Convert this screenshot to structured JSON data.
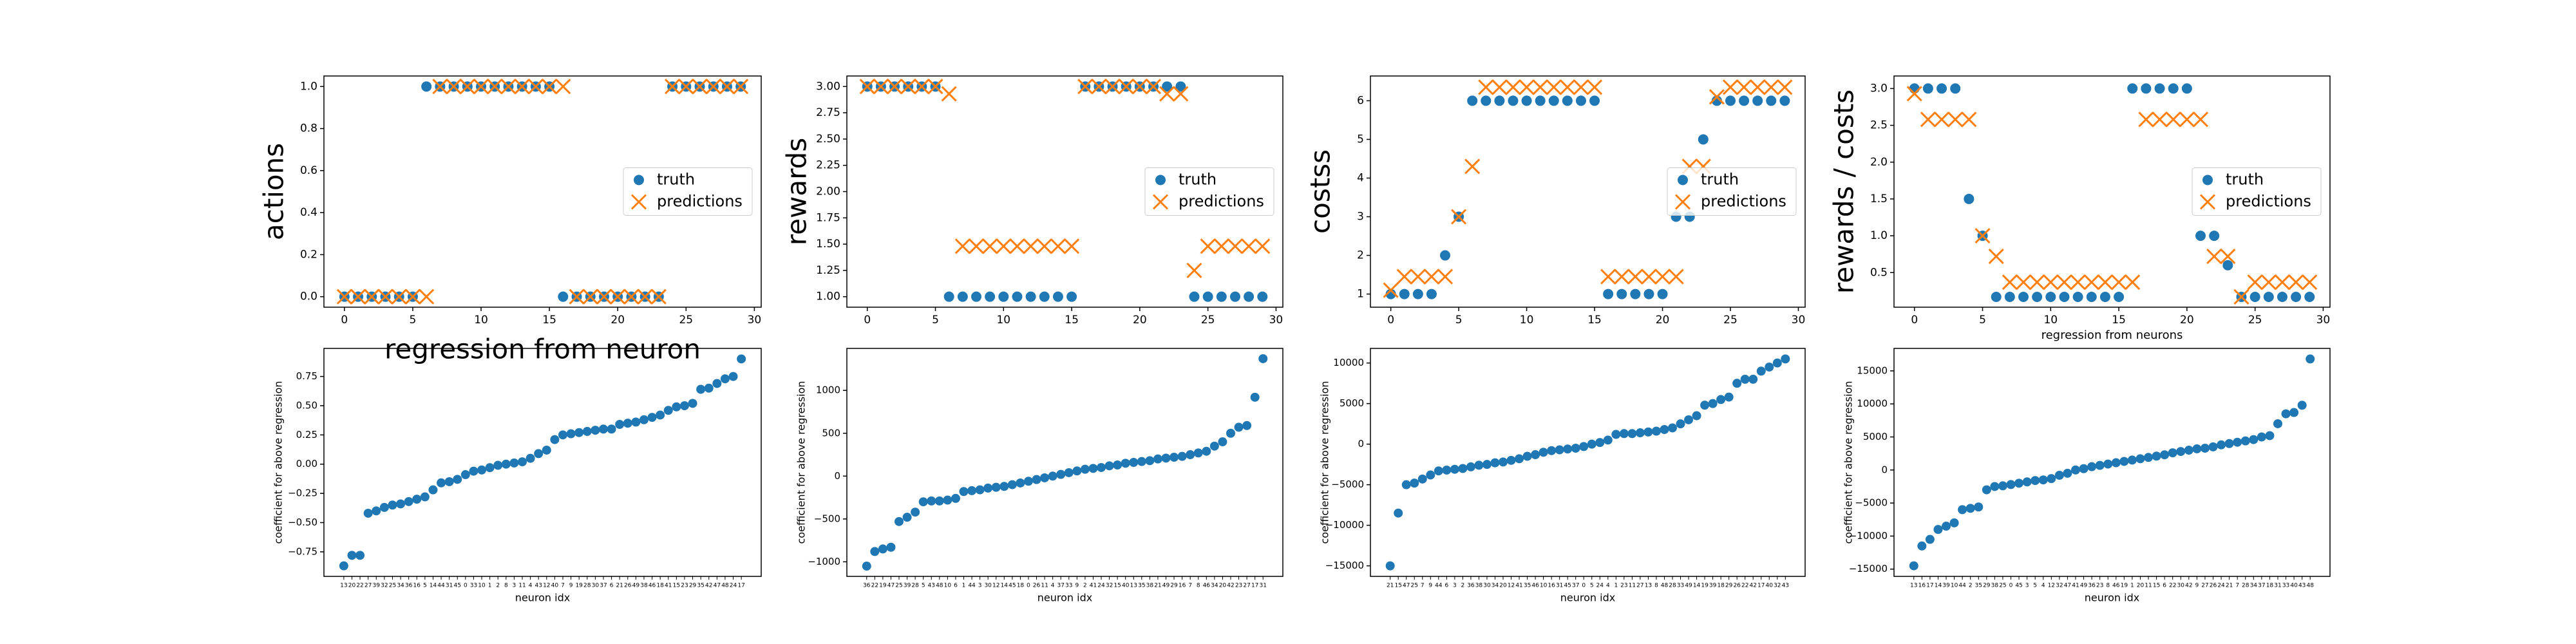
{
  "chart_data": [
    {
      "type": "scatter",
      "xlabel": "regression from neuron",
      "ylabel": "actions",
      "legend": "center right",
      "x": [
        0,
        1,
        2,
        3,
        4,
        5,
        6,
        7,
        8,
        9,
        10,
        11,
        12,
        13,
        14,
        15,
        16,
        17,
        18,
        19,
        20,
        21,
        22,
        23,
        24,
        25,
        26,
        27,
        28,
        29
      ],
      "series": [
        {
          "name": "truth",
          "color": "#1f77b4",
          "marker": "o",
          "values": [
            0,
            0,
            0,
            0,
            0,
            0,
            1,
            1,
            1,
            1,
            1,
            1,
            1,
            1,
            1,
            1,
            0,
            0,
            0,
            0,
            0,
            0,
            0,
            0,
            1,
            1,
            1,
            1,
            1,
            1
          ]
        },
        {
          "name": "predictions",
          "color": "#ff7f0e",
          "marker": "x",
          "values": [
            0,
            0,
            0,
            0,
            0,
            0,
            0,
            1,
            1,
            1,
            1,
            1,
            1,
            1,
            1,
            1,
            1,
            0,
            0,
            0,
            0,
            0,
            0,
            0,
            1,
            1,
            1,
            1,
            1,
            1
          ]
        }
      ],
      "xlim": [
        -1.5,
        30.5
      ],
      "xticks": [
        0,
        5,
        10,
        15,
        20,
        25,
        30
      ],
      "ylim": [
        -0.05,
        1.05
      ],
      "yticks": [
        {
          "value": 0,
          "label": "0.0"
        },
        0.2,
        0.4,
        0.6,
        0.8,
        {
          "value": 1,
          "label": "1.0"
        }
      ]
    },
    {
      "type": "scatter",
      "ylabel": "rewards",
      "legend": "center right",
      "x": [
        0,
        1,
        2,
        3,
        4,
        5,
        6,
        7,
        8,
        9,
        10,
        11,
        12,
        13,
        14,
        15,
        16,
        17,
        18,
        19,
        20,
        21,
        22,
        23,
        24,
        25,
        26,
        27,
        28,
        29
      ],
      "series": [
        {
          "name": "truth",
          "color": "#1f77b4",
          "marker": "o",
          "values": [
            3,
            3,
            3,
            3,
            3,
            3,
            1,
            1,
            1,
            1,
            1,
            1,
            1,
            1,
            1,
            1,
            3,
            3,
            3,
            3,
            3,
            3,
            3,
            3,
            1,
            1,
            1,
            1,
            1,
            1
          ]
        },
        {
          "name": "predictions",
          "color": "#ff7f0e",
          "marker": "x",
          "values": [
            3,
            3,
            3,
            3,
            3,
            3,
            2.93,
            1.48,
            1.48,
            1.48,
            1.48,
            1.48,
            1.48,
            1.48,
            1.48,
            1.48,
            3,
            3,
            3,
            3,
            3,
            3,
            2.93,
            2.93,
            1.25,
            1.48,
            1.48,
            1.48,
            1.48,
            1.48
          ]
        }
      ],
      "xlim": [
        -1.5,
        30.5
      ],
      "xticks": [
        0,
        5,
        10,
        15,
        20,
        25,
        30
      ],
      "ylim": [
        0.9,
        3.1
      ],
      "yticks": [
        {
          "value": 1,
          "label": "1.00"
        },
        1.25,
        {
          "value": 1.5,
          "label": "1.50"
        },
        1.75,
        {
          "value": 2,
          "label": "2.00"
        },
        2.25,
        {
          "value": 2.5,
          "label": "2.50"
        },
        2.75,
        {
          "value": 3,
          "label": "3.00"
        }
      ]
    },
    {
      "type": "scatter",
      "ylabel": "costss",
      "legend": "center right",
      "x": [
        0,
        1,
        2,
        3,
        4,
        5,
        6,
        7,
        8,
        9,
        10,
        11,
        12,
        13,
        14,
        15,
        16,
        17,
        18,
        19,
        20,
        21,
        22,
        23,
        24,
        25,
        26,
        27,
        28,
        29
      ],
      "series": [
        {
          "name": "truth",
          "color": "#1f77b4",
          "marker": "o",
          "values": [
            1,
            1,
            1,
            1,
            2,
            3,
            6,
            6,
            6,
            6,
            6,
            6,
            6,
            6,
            6,
            6,
            1,
            1,
            1,
            1,
            1,
            3,
            3,
            5,
            6,
            6,
            6,
            6,
            6,
            6
          ]
        },
        {
          "name": "predictions",
          "color": "#ff7f0e",
          "marker": "x",
          "values": [
            1.1,
            1.45,
            1.45,
            1.45,
            1.45,
            3,
            4.3,
            6.35,
            6.35,
            6.35,
            6.35,
            6.35,
            6.35,
            6.35,
            6.35,
            6.35,
            1.45,
            1.45,
            1.45,
            1.45,
            1.45,
            1.45,
            4.3,
            4.3,
            6.1,
            6.35,
            6.35,
            6.35,
            6.35,
            6.35
          ]
        }
      ],
      "xlim": [
        -1.5,
        30.5
      ],
      "xticks": [
        0,
        5,
        10,
        15,
        20,
        25,
        30
      ],
      "ylim": [
        0.66,
        6.64
      ],
      "yticks": [
        1,
        2,
        3,
        4,
        5,
        6
      ]
    },
    {
      "type": "scatter",
      "xlabel": "regression from neurons",
      "ylabel": "rewards / costs",
      "legend": "center right",
      "x": [
        0,
        1,
        2,
        3,
        4,
        5,
        6,
        7,
        8,
        9,
        10,
        11,
        12,
        13,
        14,
        15,
        16,
        17,
        18,
        19,
        20,
        21,
        22,
        23,
        24,
        25,
        26,
        27,
        28,
        29
      ],
      "series": [
        {
          "name": "truth",
          "color": "#1f77b4",
          "marker": "o",
          "values": [
            3,
            3,
            3,
            3,
            1.5,
            1,
            0.17,
            0.17,
            0.17,
            0.17,
            0.17,
            0.17,
            0.17,
            0.17,
            0.17,
            0.17,
            3,
            3,
            3,
            3,
            3,
            1,
            1,
            0.6,
            0.17,
            0.17,
            0.17,
            0.17,
            0.17,
            0.17
          ]
        },
        {
          "name": "predictions",
          "color": "#ff7f0e",
          "marker": "x",
          "values": [
            2.93,
            2.58,
            2.58,
            2.58,
            2.58,
            1,
            0.72,
            0.37,
            0.37,
            0.37,
            0.37,
            0.37,
            0.37,
            0.37,
            0.37,
            0.37,
            0.37,
            2.58,
            2.58,
            2.58,
            2.58,
            2.58,
            0.72,
            0.72,
            0.17,
            0.37,
            0.37,
            0.37,
            0.37,
            0.37
          ]
        }
      ],
      "xlim": [
        -1.5,
        30.5
      ],
      "xticks": [
        0,
        5,
        10,
        15,
        20,
        25,
        30
      ],
      "ylim": [
        0.03,
        3.17
      ],
      "yticks": [
        0.5,
        {
          "value": 1,
          "label": "1.0"
        },
        1.5,
        {
          "value": 2,
          "label": "2.0"
        },
        2.5,
        {
          "value": 3,
          "label": "3.0"
        }
      ]
    },
    {
      "type": "scatter",
      "xlabel": "neuron idx",
      "ylabel": "coefficient for above regression",
      "color": "#1f77b4",
      "categories": [
        13,
        20,
        22,
        27,
        39,
        32,
        25,
        34,
        36,
        16,
        5,
        14,
        44,
        31,
        45,
        0,
        33,
        10,
        1,
        2,
        8,
        3,
        11,
        4,
        43,
        12,
        40,
        7,
        9,
        19,
        28,
        30,
        37,
        6,
        21,
        26,
        49,
        38,
        46,
        18,
        41,
        15,
        23,
        29,
        35,
        42,
        47,
        48,
        24,
        17
      ],
      "values": [
        -0.87,
        -0.78,
        -0.78,
        -0.42,
        -0.4,
        -0.37,
        -0.35,
        -0.34,
        -0.32,
        -0.3,
        -0.28,
        -0.22,
        -0.16,
        -0.15,
        -0.13,
        -0.09,
        -0.06,
        -0.05,
        -0.03,
        -0.01,
        0.0,
        0.01,
        0.02,
        0.05,
        0.09,
        0.12,
        0.21,
        0.25,
        0.26,
        0.27,
        0.28,
        0.29,
        0.3,
        0.3,
        0.34,
        0.35,
        0.36,
        0.38,
        0.4,
        0.42,
        0.46,
        0.49,
        0.5,
        0.52,
        0.64,
        0.65,
        0.69,
        0.73,
        0.75,
        0.9
      ],
      "ylim": [
        -0.96,
        0.99
      ],
      "yticks": [
        {
          "value": -0.75,
          "label": "−0.75"
        },
        {
          "value": -0.5,
          "label": "−0.50"
        },
        {
          "value": -0.25,
          "label": "−0.25"
        },
        {
          "value": 0,
          "label": "0.00"
        },
        0.25,
        {
          "value": 0.5,
          "label": "0.50"
        },
        0.75
      ]
    },
    {
      "type": "scatter",
      "xlabel": "neuron idx",
      "ylabel": "coefficient for above regression",
      "color": "#1f77b4",
      "categories": [
        36,
        22,
        19,
        47,
        25,
        39,
        28,
        5,
        43,
        48,
        10,
        6,
        1,
        44,
        3,
        30,
        12,
        14,
        45,
        18,
        0,
        26,
        11,
        4,
        37,
        33,
        9,
        2,
        41,
        24,
        32,
        15,
        40,
        13,
        35,
        38,
        21,
        49,
        29,
        16,
        7,
        8,
        46,
        34,
        20,
        42,
        23,
        27,
        17,
        31
      ],
      "values": [
        -1050,
        -880,
        -850,
        -830,
        -530,
        -480,
        -420,
        -300,
        -290,
        -290,
        -280,
        -260,
        -180,
        -170,
        -160,
        -140,
        -130,
        -120,
        -100,
        -80,
        -60,
        -40,
        -20,
        0,
        20,
        40,
        60,
        80,
        90,
        100,
        120,
        130,
        150,
        160,
        170,
        180,
        200,
        210,
        220,
        230,
        250,
        270,
        290,
        350,
        400,
        500,
        570,
        590,
        920,
        1370
      ],
      "ylim": [
        -1170,
        1490
      ],
      "yticks": [
        {
          "value": -1000,
          "label": "−1000"
        },
        {
          "value": -500,
          "label": "−500"
        },
        0,
        500,
        1000
      ]
    },
    {
      "type": "scatter",
      "xlabel": "neuron idx",
      "ylabel": "coefficient for above regression",
      "color": "#1f77b4",
      "categories": [
        21,
        15,
        47,
        25,
        7,
        9,
        44,
        6,
        3,
        2,
        36,
        38,
        30,
        34,
        20,
        12,
        41,
        35,
        46,
        10,
        16,
        31,
        45,
        37,
        0,
        5,
        24,
        4,
        1,
        23,
        11,
        27,
        13,
        8,
        48,
        28,
        33,
        49,
        14,
        19,
        39,
        18,
        29,
        26,
        22,
        42,
        17,
        40,
        32,
        43
      ],
      "values": [
        -15000,
        -8500,
        -5000,
        -4800,
        -4300,
        -3800,
        -3300,
        -3200,
        -3100,
        -3000,
        -2800,
        -2600,
        -2500,
        -2300,
        -2200,
        -2000,
        -1800,
        -1500,
        -1300,
        -1000,
        -800,
        -700,
        -600,
        -500,
        -300,
        0,
        200,
        500,
        1200,
        1300,
        1300,
        1400,
        1500,
        1600,
        1800,
        2000,
        2500,
        3000,
        3500,
        4800,
        5000,
        5500,
        5800,
        7500,
        8000,
        8000,
        9000,
        9500,
        10000,
        10500
      ],
      "ylim": [
        -16300,
        11800
      ],
      "yticks": [
        {
          "value": -15000,
          "label": "−15000"
        },
        {
          "value": -10000,
          "label": "−10000"
        },
        {
          "value": -5000,
          "label": "−5000"
        },
        0,
        5000,
        10000
      ]
    },
    {
      "type": "scatter",
      "xlabel": "neuron idx",
      "ylabel": "coefficient for above regression",
      "color": "#1f77b4",
      "categories": [
        13,
        16,
        17,
        14,
        39,
        10,
        44,
        2,
        35,
        29,
        38,
        25,
        0,
        45,
        3,
        5,
        4,
        12,
        32,
        47,
        41,
        49,
        36,
        23,
        8,
        46,
        19,
        1,
        20,
        11,
        15,
        6,
        22,
        30,
        42,
        9,
        27,
        26,
        24,
        21,
        7,
        28,
        34,
        37,
        18,
        31,
        33,
        40,
        43,
        48
      ],
      "values": [
        -14500,
        -11500,
        -10500,
        -9000,
        -8500,
        -8000,
        -6000,
        -5800,
        -5600,
        -3000,
        -2500,
        -2400,
        -2200,
        -2000,
        -1800,
        -1600,
        -1500,
        -1300,
        -800,
        -500,
        0,
        200,
        500,
        700,
        900,
        1100,
        1300,
        1500,
        1700,
        1900,
        2100,
        2300,
        2600,
        2800,
        3000,
        3200,
        3300,
        3500,
        3800,
        4000,
        4200,
        4400,
        4600,
        5000,
        5200,
        7000,
        8500,
        8700,
        9800,
        16800
      ],
      "ylim": [
        -16100,
        18400
      ],
      "yticks": [
        {
          "value": -15000,
          "label": "−15000"
        },
        {
          "value": -10000,
          "label": "−10000"
        },
        {
          "value": -5000,
          "label": "−5000"
        },
        0,
        5000,
        10000,
        15000
      ]
    }
  ]
}
